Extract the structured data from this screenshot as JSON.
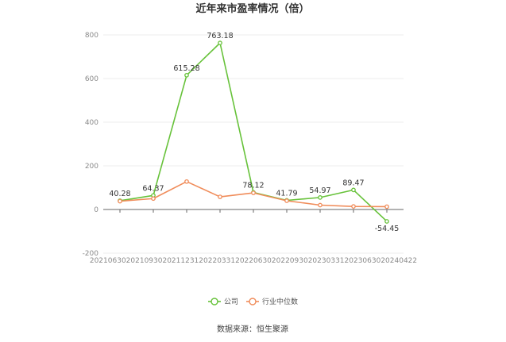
{
  "chart_data": {
    "type": "line",
    "title": "近年来市盈率情况（倍）",
    "categories": [
      "20210630",
      "20210930",
      "20211231",
      "20220331",
      "20220630",
      "20220930",
      "20230331",
      "20230630",
      "20240422"
    ],
    "series": [
      {
        "name": "公司",
        "values": [
          40.28,
          64.37,
          615.28,
          763.18,
          78.12,
          41.79,
          54.97,
          89.47,
          -54.45
        ],
        "labels": [
          "40.28",
          "64.37",
          "615.28",
          "763.18",
          "78.12",
          "41.79",
          "54.97",
          "89.47",
          "-54.45"
        ],
        "color": "#67c23a"
      },
      {
        "name": "行业中位数",
        "values": [
          38,
          50,
          128,
          58,
          76,
          40,
          20,
          14,
          13
        ],
        "color": "#f08c5a"
      }
    ],
    "yticks": [
      "800",
      "600",
      "400",
      "200",
      "0",
      "-200"
    ],
    "ylim": [
      -200,
      800
    ],
    "grid": true,
    "legend_position": "bottom",
    "source": "数据来源：恒生聚源"
  }
}
